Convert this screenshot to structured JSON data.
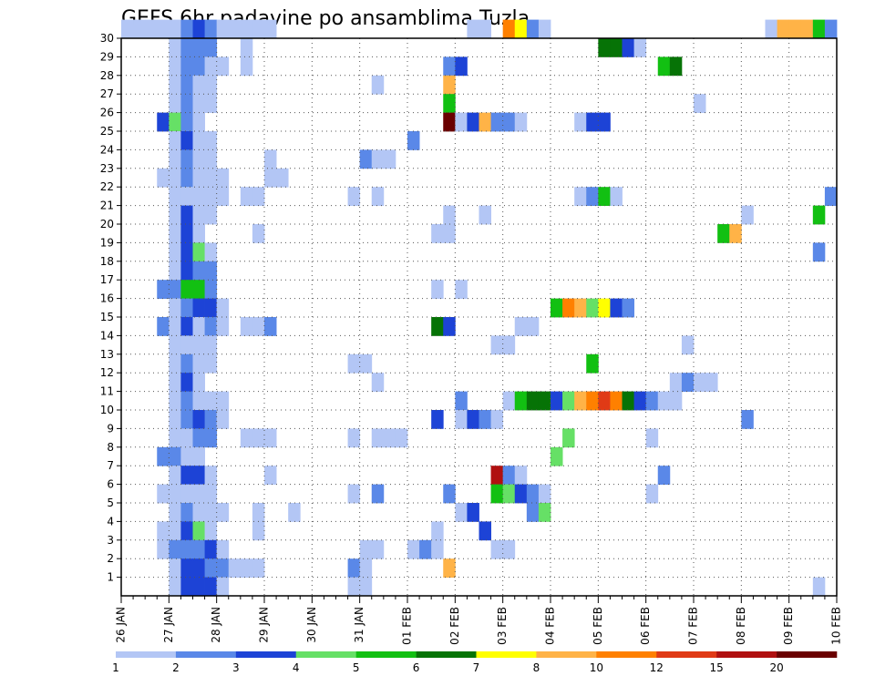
{
  "chart_data": {
    "type": "heatmap",
    "title": "GEFS 6hr padavine po ansamblima Tuzla",
    "xlabel": "",
    "ylabel": "",
    "x_ticks": [
      "26 JAN",
      "27 JAN",
      "28 JAN",
      "29 JAN",
      "30 JAN",
      "31 JAN",
      "01 FEB",
      "02 FEB",
      "03 FEB",
      "04 FEB",
      "05 FEB",
      "06 FEB",
      "07 FEB",
      "08 FEB",
      "09 FEB",
      "10 FEB"
    ],
    "xlim": [
      0,
      60
    ],
    "y_ticks": [
      1,
      2,
      3,
      4,
      5,
      6,
      7,
      8,
      9,
      10,
      11,
      12,
      13,
      14,
      15,
      16,
      17,
      18,
      19,
      20,
      21,
      22,
      23,
      24,
      25,
      26,
      27,
      28,
      29,
      30
    ],
    "ylim": [
      0,
      30
    ],
    "grid": true,
    "legend": {
      "placement": "bottom",
      "levels": [
        1,
        2,
        3,
        4,
        5,
        6,
        7,
        8,
        10,
        12,
        15,
        20
      ],
      "colors": [
        "#b3c6f5",
        "#5a88e8",
        "#1d43d6",
        "#66e066",
        "#12c012",
        "#067306",
        "#ffff00",
        "#ffb347",
        "#ff8000",
        "#e03a16",
        "#b01010",
        "#6a0000"
      ]
    },
    "units_note": "x = 6-hour step index from 26 JAN 00Z (4 per day); y = ensemble member; v = color level 1-12",
    "cells": [
      [
        0,
        30,
        1
      ],
      [
        1,
        30,
        1
      ],
      [
        2,
        30,
        1
      ],
      [
        3,
        30,
        1
      ],
      [
        4,
        30,
        1
      ],
      [
        5,
        30,
        2
      ],
      [
        6,
        30,
        3
      ],
      [
        7,
        30,
        2
      ],
      [
        8,
        30,
        1
      ],
      [
        9,
        30,
        1
      ],
      [
        10,
        30,
        1
      ],
      [
        11,
        30,
        1
      ],
      [
        12,
        30,
        1
      ],
      [
        29,
        30,
        1
      ],
      [
        30,
        30,
        1
      ],
      [
        32,
        30,
        9
      ],
      [
        33,
        30,
        7
      ],
      [
        34,
        30,
        2
      ],
      [
        35,
        30,
        1
      ],
      [
        54,
        30,
        1
      ],
      [
        55,
        30,
        8
      ],
      [
        56,
        30,
        8
      ],
      [
        57,
        30,
        8
      ],
      [
        58,
        30,
        5
      ],
      [
        59,
        30,
        2
      ],
      [
        4,
        29,
        1
      ],
      [
        5,
        29,
        2
      ],
      [
        6,
        29,
        2
      ],
      [
        7,
        29,
        2
      ],
      [
        10,
        29,
        1
      ],
      [
        40,
        29,
        6
      ],
      [
        41,
        29,
        6
      ],
      [
        42,
        29,
        3
      ],
      [
        43,
        29,
        1
      ],
      [
        4,
        28,
        1
      ],
      [
        5,
        28,
        2
      ],
      [
        6,
        28,
        2
      ],
      [
        7,
        28,
        1
      ],
      [
        8,
        28,
        1
      ],
      [
        10,
        28,
        1
      ],
      [
        27,
        28,
        2
      ],
      [
        28,
        28,
        3
      ],
      [
        45,
        28,
        5
      ],
      [
        46,
        28,
        6
      ],
      [
        4,
        27,
        1
      ],
      [
        5,
        27,
        2
      ],
      [
        6,
        27,
        1
      ],
      [
        7,
        27,
        1
      ],
      [
        21,
        27,
        1
      ],
      [
        27,
        27,
        8
      ],
      [
        4,
        26,
        1
      ],
      [
        5,
        26,
        2
      ],
      [
        6,
        26,
        1
      ],
      [
        7,
        26,
        1
      ],
      [
        27,
        26,
        5
      ],
      [
        48,
        26,
        1
      ],
      [
        3,
        25,
        3
      ],
      [
        4,
        25,
        4
      ],
      [
        5,
        25,
        2
      ],
      [
        6,
        25,
        1
      ],
      [
        27,
        25,
        12
      ],
      [
        28,
        25,
        1
      ],
      [
        29,
        25,
        3
      ],
      [
        30,
        25,
        8
      ],
      [
        31,
        25,
        2
      ],
      [
        32,
        25,
        2
      ],
      [
        33,
        25,
        1
      ],
      [
        38,
        25,
        1
      ],
      [
        39,
        25,
        3
      ],
      [
        40,
        25,
        3
      ],
      [
        4,
        24,
        1
      ],
      [
        5,
        24,
        3
      ],
      [
        6,
        24,
        1
      ],
      [
        7,
        24,
        1
      ],
      [
        24,
        24,
        2
      ],
      [
        4,
        23,
        1
      ],
      [
        5,
        23,
        2
      ],
      [
        6,
        23,
        1
      ],
      [
        7,
        23,
        1
      ],
      [
        12,
        23,
        1
      ],
      [
        20,
        23,
        2
      ],
      [
        21,
        23,
        1
      ],
      [
        22,
        23,
        1
      ],
      [
        3,
        22,
        1
      ],
      [
        4,
        22,
        1
      ],
      [
        5,
        22,
        2
      ],
      [
        6,
        22,
        1
      ],
      [
        7,
        22,
        1
      ],
      [
        8,
        22,
        1
      ],
      [
        12,
        22,
        1
      ],
      [
        13,
        22,
        1
      ],
      [
        4,
        21,
        1
      ],
      [
        5,
        21,
        1
      ],
      [
        6,
        21,
        1
      ],
      [
        7,
        21,
        1
      ],
      [
        8,
        21,
        1
      ],
      [
        10,
        21,
        1
      ],
      [
        11,
        21,
        1
      ],
      [
        19,
        21,
        1
      ],
      [
        21,
        21,
        1
      ],
      [
        38,
        21,
        1
      ],
      [
        39,
        21,
        2
      ],
      [
        40,
        21,
        5
      ],
      [
        41,
        21,
        1
      ],
      [
        59,
        21,
        2
      ],
      [
        4,
        20,
        1
      ],
      [
        5,
        20,
        3
      ],
      [
        6,
        20,
        1
      ],
      [
        7,
        20,
        1
      ],
      [
        27,
        20,
        1
      ],
      [
        30,
        20,
        1
      ],
      [
        52,
        20,
        1
      ],
      [
        58,
        20,
        5
      ],
      [
        4,
        19,
        1
      ],
      [
        5,
        19,
        3
      ],
      [
        6,
        19,
        1
      ],
      [
        11,
        19,
        1
      ],
      [
        26,
        19,
        1
      ],
      [
        27,
        19,
        1
      ],
      [
        50,
        19,
        5
      ],
      [
        51,
        19,
        8
      ],
      [
        4,
        18,
        1
      ],
      [
        5,
        18,
        3
      ],
      [
        6,
        18,
        4
      ],
      [
        7,
        18,
        1
      ],
      [
        58,
        18,
        2
      ],
      [
        4,
        17,
        1
      ],
      [
        5,
        17,
        3
      ],
      [
        6,
        17,
        2
      ],
      [
        7,
        17,
        2
      ],
      [
        3,
        16,
        2
      ],
      [
        4,
        16,
        2
      ],
      [
        5,
        16,
        5
      ],
      [
        6,
        16,
        5
      ],
      [
        7,
        16,
        2
      ],
      [
        26,
        16,
        1
      ],
      [
        28,
        16,
        1
      ],
      [
        4,
        15,
        1
      ],
      [
        5,
        15,
        2
      ],
      [
        6,
        15,
        3
      ],
      [
        7,
        15,
        3
      ],
      [
        8,
        15,
        1
      ],
      [
        36,
        15,
        5
      ],
      [
        37,
        15,
        9
      ],
      [
        38,
        15,
        8
      ],
      [
        39,
        15,
        4
      ],
      [
        40,
        15,
        7
      ],
      [
        41,
        15,
        3
      ],
      [
        42,
        15,
        2
      ],
      [
        3,
        14,
        2
      ],
      [
        4,
        14,
        1
      ],
      [
        5,
        14,
        3
      ],
      [
        6,
        14,
        1
      ],
      [
        7,
        14,
        2
      ],
      [
        8,
        14,
        1
      ],
      [
        10,
        14,
        1
      ],
      [
        11,
        14,
        1
      ],
      [
        12,
        14,
        2
      ],
      [
        26,
        14,
        6
      ],
      [
        27,
        14,
        3
      ],
      [
        33,
        14,
        1
      ],
      [
        34,
        14,
        1
      ],
      [
        4,
        13,
        1
      ],
      [
        5,
        13,
        1
      ],
      [
        6,
        13,
        1
      ],
      [
        7,
        13,
        1
      ],
      [
        31,
        13,
        1
      ],
      [
        32,
        13,
        1
      ],
      [
        47,
        13,
        1
      ],
      [
        4,
        12,
        1
      ],
      [
        5,
        12,
        2
      ],
      [
        6,
        12,
        1
      ],
      [
        7,
        12,
        1
      ],
      [
        19,
        12,
        1
      ],
      [
        20,
        12,
        1
      ],
      [
        39,
        12,
        5
      ],
      [
        4,
        11,
        1
      ],
      [
        5,
        11,
        3
      ],
      [
        6,
        11,
        1
      ],
      [
        21,
        11,
        1
      ],
      [
        46,
        11,
        1
      ],
      [
        47,
        11,
        2
      ],
      [
        48,
        11,
        1
      ],
      [
        49,
        11,
        1
      ],
      [
        4,
        10,
        1
      ],
      [
        5,
        10,
        2
      ],
      [
        6,
        10,
        1
      ],
      [
        7,
        10,
        1
      ],
      [
        8,
        10,
        1
      ],
      [
        28,
        10,
        2
      ],
      [
        32,
        10,
        1
      ],
      [
        33,
        10,
        5
      ],
      [
        34,
        10,
        6
      ],
      [
        35,
        10,
        6
      ],
      [
        36,
        10,
        3
      ],
      [
        37,
        10,
        4
      ],
      [
        38,
        10,
        8
      ],
      [
        39,
        10,
        9
      ],
      [
        40,
        10,
        10
      ],
      [
        41,
        10,
        9
      ],
      [
        42,
        10,
        6
      ],
      [
        43,
        10,
        3
      ],
      [
        44,
        10,
        2
      ],
      [
        45,
        10,
        1
      ],
      [
        46,
        10,
        1
      ],
      [
        4,
        9,
        1
      ],
      [
        5,
        9,
        2
      ],
      [
        6,
        9,
        3
      ],
      [
        7,
        9,
        2
      ],
      [
        8,
        9,
        1
      ],
      [
        26,
        9,
        3
      ],
      [
        28,
        9,
        1
      ],
      [
        29,
        9,
        3
      ],
      [
        30,
        9,
        2
      ],
      [
        31,
        9,
        1
      ],
      [
        52,
        9,
        2
      ],
      [
        4,
        8,
        1
      ],
      [
        5,
        8,
        1
      ],
      [
        6,
        8,
        2
      ],
      [
        7,
        8,
        2
      ],
      [
        10,
        8,
        1
      ],
      [
        11,
        8,
        1
      ],
      [
        12,
        8,
        1
      ],
      [
        19,
        8,
        1
      ],
      [
        21,
        8,
        1
      ],
      [
        22,
        8,
        1
      ],
      [
        23,
        8,
        1
      ],
      [
        37,
        8,
        4
      ],
      [
        44,
        8,
        1
      ],
      [
        3,
        7,
        2
      ],
      [
        4,
        7,
        2
      ],
      [
        5,
        7,
        1
      ],
      [
        6,
        7,
        1
      ],
      [
        36,
        7,
        4
      ],
      [
        4,
        6,
        1
      ],
      [
        5,
        6,
        3
      ],
      [
        6,
        6,
        3
      ],
      [
        7,
        6,
        1
      ],
      [
        12,
        6,
        1
      ],
      [
        31,
        6,
        11
      ],
      [
        32,
        6,
        2
      ],
      [
        33,
        6,
        1
      ],
      [
        45,
        6,
        2
      ],
      [
        3,
        5,
        1
      ],
      [
        4,
        5,
        1
      ],
      [
        5,
        5,
        1
      ],
      [
        6,
        5,
        1
      ],
      [
        7,
        5,
        1
      ],
      [
        19,
        5,
        1
      ],
      [
        21,
        5,
        2
      ],
      [
        27,
        5,
        2
      ],
      [
        31,
        5,
        5
      ],
      [
        32,
        5,
        4
      ],
      [
        33,
        5,
        3
      ],
      [
        34,
        5,
        2
      ],
      [
        35,
        5,
        1
      ],
      [
        44,
        5,
        1
      ],
      [
        4,
        4,
        1
      ],
      [
        5,
        4,
        2
      ],
      [
        6,
        4,
        1
      ],
      [
        7,
        4,
        1
      ],
      [
        8,
        4,
        1
      ],
      [
        11,
        4,
        1
      ],
      [
        14,
        4,
        1
      ],
      [
        28,
        4,
        1
      ],
      [
        29,
        4,
        3
      ],
      [
        34,
        4,
        2
      ],
      [
        35,
        4,
        4
      ],
      [
        3,
        3,
        1
      ],
      [
        4,
        3,
        1
      ],
      [
        5,
        3,
        3
      ],
      [
        6,
        3,
        4
      ],
      [
        7,
        3,
        1
      ],
      [
        11,
        3,
        1
      ],
      [
        26,
        3,
        1
      ],
      [
        30,
        3,
        3
      ],
      [
        3,
        2,
        1
      ],
      [
        4,
        2,
        2
      ],
      [
        5,
        2,
        2
      ],
      [
        6,
        2,
        2
      ],
      [
        7,
        2,
        3
      ],
      [
        8,
        2,
        1
      ],
      [
        20,
        2,
        1
      ],
      [
        21,
        2,
        1
      ],
      [
        24,
        2,
        1
      ],
      [
        25,
        2,
        2
      ],
      [
        26,
        2,
        1
      ],
      [
        31,
        2,
        1
      ],
      [
        32,
        2,
        1
      ],
      [
        4,
        1,
        1
      ],
      [
        5,
        1,
        3
      ],
      [
        6,
        1,
        3
      ],
      [
        7,
        1,
        2
      ],
      [
        8,
        1,
        2
      ],
      [
        9,
        1,
        1
      ],
      [
        10,
        1,
        1
      ],
      [
        11,
        1,
        1
      ],
      [
        19,
        1,
        2
      ],
      [
        20,
        1,
        1
      ],
      [
        27,
        1,
        8
      ],
      [
        4,
        0,
        1
      ],
      [
        5,
        0,
        3
      ],
      [
        6,
        0,
        3
      ],
      [
        7,
        0,
        3
      ],
      [
        8,
        0,
        1
      ],
      [
        19,
        0,
        1
      ],
      [
        20,
        0,
        1
      ],
      [
        58,
        0,
        1
      ]
    ]
  }
}
